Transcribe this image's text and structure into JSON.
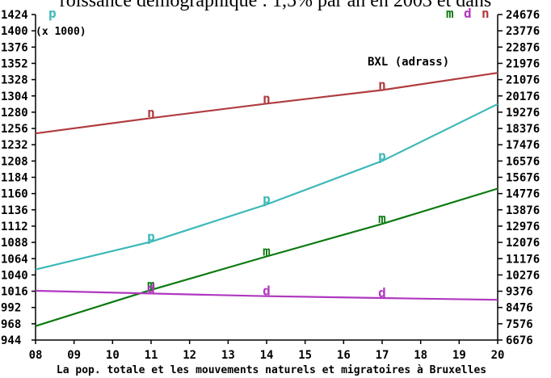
{
  "page": {
    "heading_fragment": "roissance démographique : 1,5% par an en 2003 et dans"
  },
  "chart_data": {
    "type": "line",
    "title": "",
    "xlabel": "La pop. totale et les mouvements naturels et migratoires à Bruxelles",
    "annotation": "BXL (adrass)",
    "left_axis": {
      "label": "p",
      "unit": "(x 1000)",
      "ticks": [
        1424,
        1400,
        1376,
        1352,
        1328,
        1304,
        1280,
        1256,
        1232,
        1208,
        1184,
        1160,
        1136,
        1112,
        1088,
        1064,
        1040,
        1016,
        992,
        968,
        944
      ],
      "ylim": [
        944,
        1424
      ]
    },
    "right_axis": {
      "labels": [
        "m",
        "d",
        "n"
      ],
      "ticks": [
        24676,
        23776,
        22876,
        21976,
        21076,
        20176,
        19276,
        18376,
        17476,
        16576,
        15676,
        14776,
        13876,
        12976,
        12076,
        11176,
        10276,
        9376,
        8476,
        7576,
        6676
      ],
      "ylim": [
        6676,
        24676
      ]
    },
    "x_ticks": [
      "08",
      "09",
      "10",
      "11",
      "12",
      "13",
      "14",
      "15",
      "16",
      "17",
      "18",
      "19",
      "20"
    ],
    "xlim": [
      8,
      20
    ],
    "series": [
      {
        "name": "n",
        "axis": "right",
        "color": "#b03c40",
        "marker": "n",
        "x": [
          8,
          11,
          14,
          17,
          20
        ],
        "y": [
          18100,
          18950,
          19750,
          20500,
          21450
        ],
        "marker_x": [
          11,
          14,
          17
        ]
      },
      {
        "name": "p",
        "axis": "left",
        "color": "#3cb8b8",
        "marker": "p",
        "x": [
          8,
          11,
          14,
          17,
          20
        ],
        "y": [
          1048,
          1089,
          1144,
          1208,
          1292
        ],
        "marker_x": [
          11,
          14,
          17
        ]
      },
      {
        "name": "m",
        "axis": "right",
        "color": "#0b7a10",
        "marker": "m",
        "x": [
          8,
          11,
          14,
          17,
          20
        ],
        "y": [
          7450,
          9450,
          11300,
          13100,
          15050
        ],
        "marker_x": [
          11,
          14,
          17
        ]
      },
      {
        "name": "d",
        "axis": "right",
        "color": "#b038c0",
        "marker": "d",
        "x": [
          8,
          11,
          14,
          17,
          20
        ],
        "y": [
          9400,
          9250,
          9100,
          9000,
          8900
        ],
        "marker_x": [
          11,
          14,
          17
        ]
      }
    ],
    "grid": false,
    "legend": "top-right"
  }
}
